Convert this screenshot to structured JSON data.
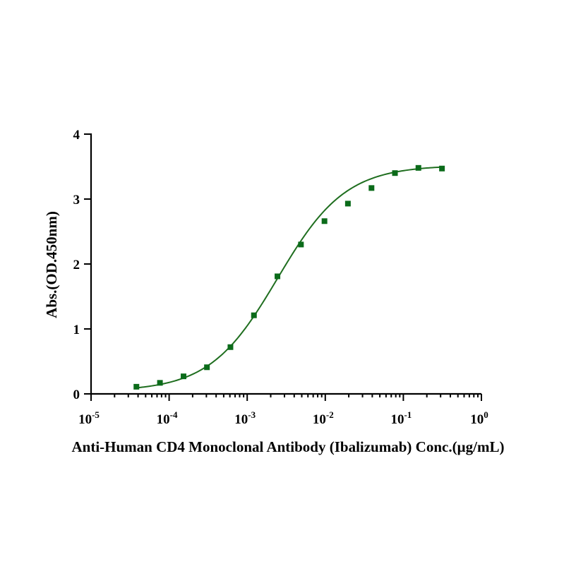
{
  "chart_data": {
    "type": "scatter",
    "title": "",
    "xlabel": "Anti-Human CD4 Monoclonal Antibody (Ibalizumab)  Conc.(µg/mL)",
    "ylabel": "Abs.(OD.450nm)",
    "x_scale": "log",
    "xlim": [
      1e-05,
      1
    ],
    "ylim": [
      0,
      4
    ],
    "x_ticks": [
      {
        "value": 1e-05,
        "base": "10",
        "exp": "-5"
      },
      {
        "value": 0.0001,
        "base": "10",
        "exp": "-4"
      },
      {
        "value": 0.001,
        "base": "10",
        "exp": "-3"
      },
      {
        "value": 0.01,
        "base": "10",
        "exp": "-2"
      },
      {
        "value": 0.1,
        "base": "10",
        "exp": "-1"
      },
      {
        "value": 1,
        "base": "10",
        "exp": "0"
      }
    ],
    "y_ticks": [
      0,
      1,
      2,
      3,
      4
    ],
    "grid": false,
    "marker_color": "#0b6b1a",
    "curve_color": "#1f6e1f",
    "series": [
      {
        "x": [
          3.81e-05,
          7.63e-05,
          0.000153,
          0.000305,
          0.00061,
          0.00122,
          0.00244,
          0.00488,
          0.00977,
          0.0195,
          0.0391,
          0.0781,
          0.156,
          0.3125
        ],
        "y": [
          0.11,
          0.17,
          0.27,
          0.41,
          0.72,
          1.21,
          1.81,
          2.3,
          2.66,
          2.93,
          3.17,
          3.4,
          3.48,
          3.47
        ]
      }
    ],
    "fit": {
      "model": "4PL",
      "bottom": 0.04,
      "top": 3.52,
      "ec50": 0.00245,
      "hill": 1.0
    }
  }
}
